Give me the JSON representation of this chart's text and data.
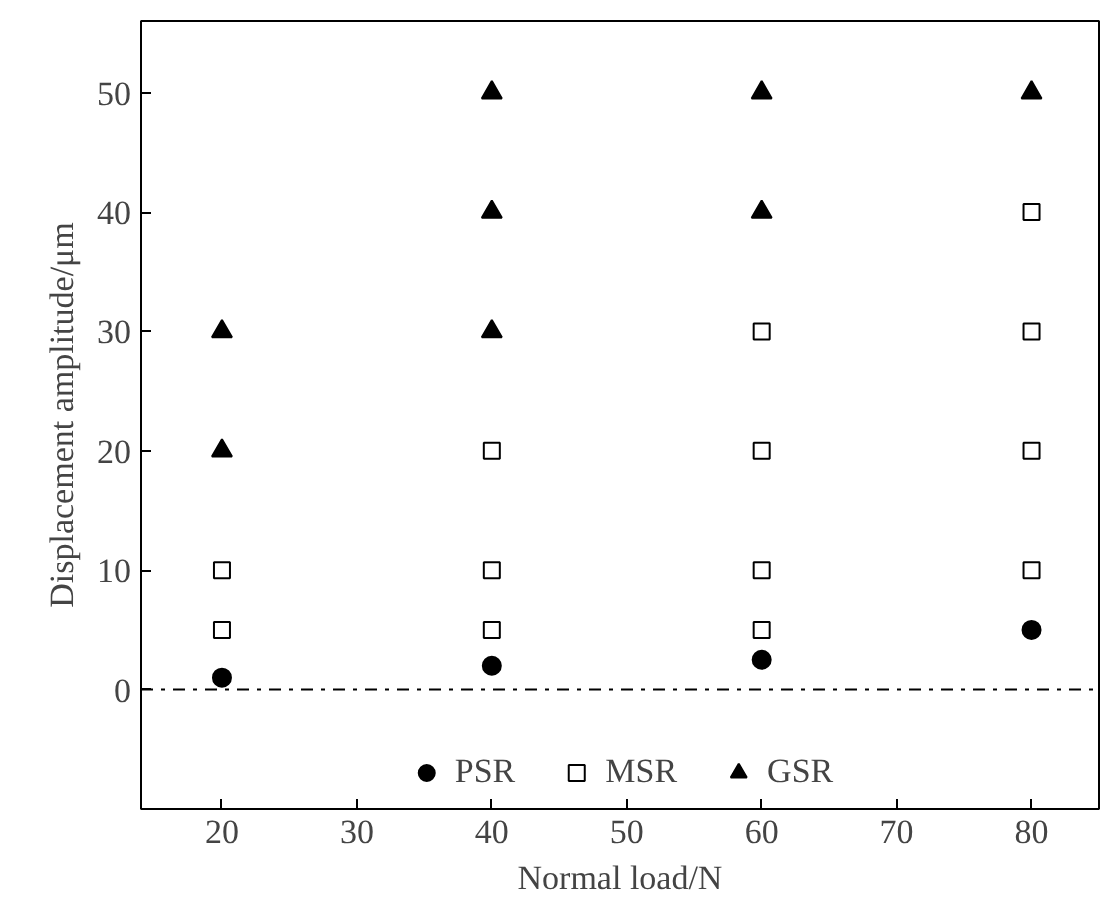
{
  "chart_data": {
    "type": "scatter",
    "xlabel": "Normal load/N",
    "ylabel": "Displacement amplitude/μm",
    "xlim": [
      14,
      85
    ],
    "xticks": [
      20,
      30,
      40,
      50,
      60,
      70,
      80
    ],
    "ylim": [
      -10,
      56
    ],
    "yticks": [
      0,
      10,
      20,
      30,
      40,
      50
    ],
    "grid": false,
    "legend": "bottom",
    "ref_lines": [
      {
        "axis": "y",
        "value": 0,
        "color": "#000000",
        "line_style": "dashdot"
      }
    ],
    "series": [
      {
        "name": "PSR",
        "color": "#000000",
        "marker": "circle",
        "x": [
          20,
          40,
          60,
          80
        ],
        "values": [
          1,
          2,
          2.5,
          5
        ]
      },
      {
        "name": "MSR",
        "color": "#000000",
        "marker": "square",
        "x": [
          20,
          20,
          40,
          40,
          40,
          60,
          60,
          60,
          60,
          80,
          80,
          80,
          80
        ],
        "values": [
          5,
          10,
          5,
          10,
          20,
          5,
          10,
          20,
          30,
          10,
          20,
          30,
          40
        ]
      },
      {
        "name": "GSR",
        "color": "#000000",
        "marker": "triangle",
        "x": [
          20,
          20,
          40,
          40,
          40,
          60,
          60,
          80
        ],
        "values": [
          20,
          30,
          30,
          40,
          50,
          40,
          50,
          50
        ]
      }
    ]
  }
}
